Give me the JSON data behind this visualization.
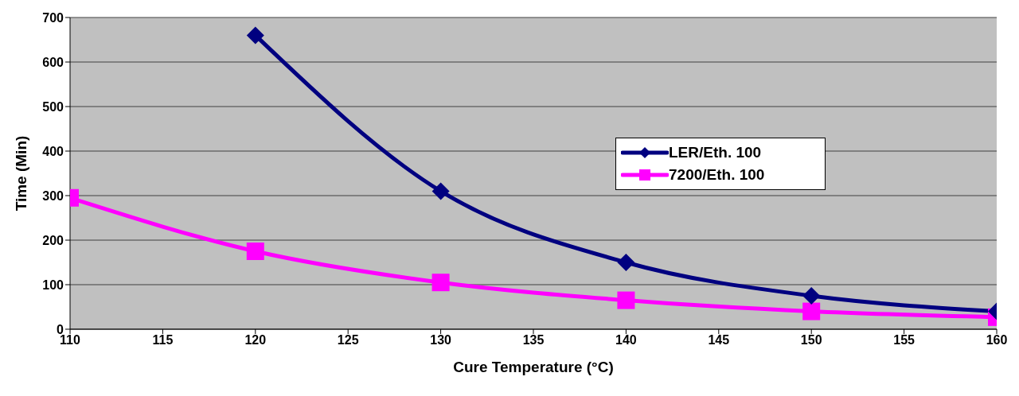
{
  "chart_data": {
    "type": "line",
    "xlabel": "Cure Temperature (°C)",
    "ylabel": "Time (Min)",
    "series": [
      {
        "name": "LER/Eth. 100",
        "color": "#000080",
        "marker": "diamond",
        "x": [
          120,
          130,
          140,
          150,
          160
        ],
        "values": [
          660,
          310,
          150,
          75,
          40
        ]
      },
      {
        "name": "7200/Eth. 100",
        "color": "#ff00ff",
        "marker": "square",
        "x": [
          110,
          120,
          130,
          140,
          150,
          160
        ],
        "values": [
          295,
          175,
          105,
          65,
          40,
          27
        ]
      }
    ],
    "xlim": [
      110,
      160
    ],
    "xticks": [
      110,
      115,
      120,
      125,
      130,
      135,
      140,
      145,
      150,
      155,
      160
    ],
    "ylim": [
      0,
      700
    ],
    "yticks": [
      0,
      100,
      200,
      300,
      400,
      500,
      600,
      700
    ],
    "grid": "y",
    "legend": "right"
  }
}
